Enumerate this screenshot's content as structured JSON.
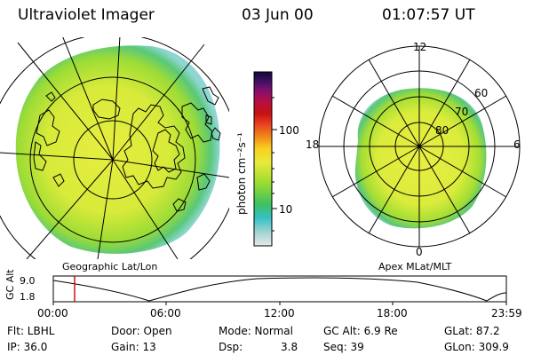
{
  "header": {
    "instrument": "Ultraviolet Imager",
    "date": "03 Jun 00",
    "time": "01:07:57 UT"
  },
  "geo_map": {
    "caption": "Geographic Lat/Lon"
  },
  "polar_plot": {
    "caption": "Apex MLat/MLT",
    "mlt_labels": {
      "top": "12",
      "left": "18",
      "right": "6",
      "bottom": "0"
    },
    "lat_labels": [
      "60",
      "70",
      "80"
    ]
  },
  "colorbar": {
    "unit_label": "photon cm⁻²s⁻¹",
    "ticks": [
      "100",
      "10"
    ],
    "colors": [
      "#e8e8e8",
      "#9fd4d0",
      "#35c0c8",
      "#40c060",
      "#9adc30",
      "#e8ea3a",
      "#f8d020",
      "#f09018",
      "#e84020",
      "#c81010",
      "#b0104a",
      "#7a1070",
      "#3a1060",
      "#100838"
    ]
  },
  "altitude_plot": {
    "ylabel": "GC Alt",
    "yticks": [
      "9.0",
      "1.8"
    ],
    "xticks": [
      "00:00",
      "06:00",
      "12:00",
      "18:00",
      "23:59"
    ],
    "marker_time_hours": 1.13,
    "marker_color": "#d00000"
  },
  "status": {
    "filter": "Flt: LBHL",
    "ip": "IP: 36.0",
    "door": "Door: Open",
    "gain": "Gain: 13",
    "mode": "Mode: Normal",
    "dsp_label": "Dsp:",
    "dsp_value": "3.8",
    "gc_alt": "GC Alt: 6.9 Re",
    "seq": "Seq: 39",
    "glat": "GLat: 87.2",
    "glon": "GLon: 309.9"
  }
}
